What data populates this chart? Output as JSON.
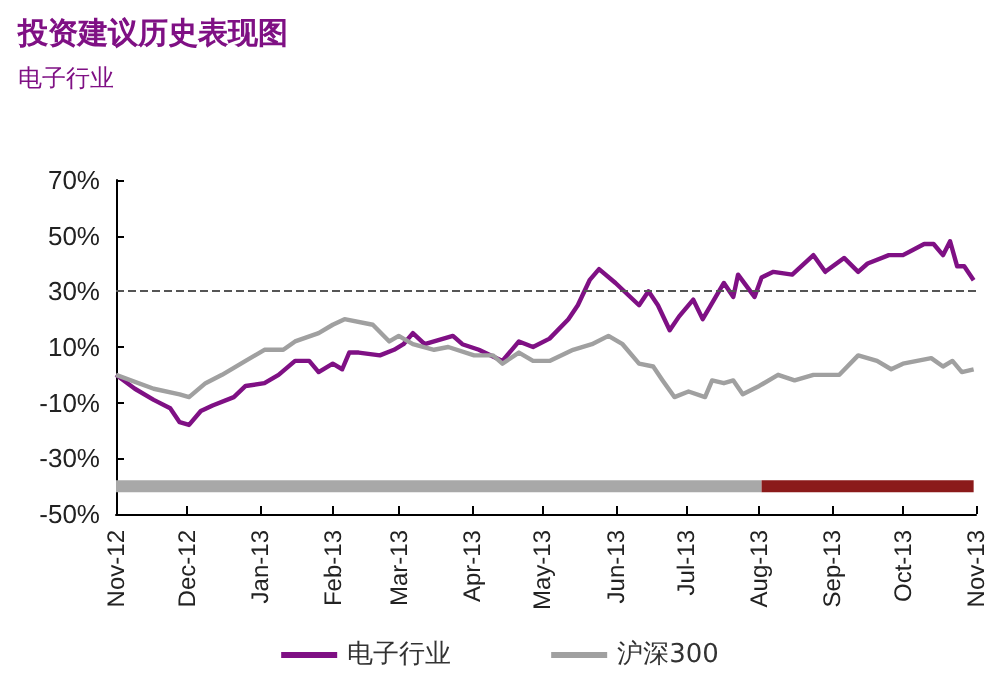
{
  "chart_data": {
    "type": "line",
    "title": "投资建议历史表现图",
    "subtitle": "电子行业",
    "xlim": [
      "2012-11-01",
      "2013-11-01"
    ],
    "xticks": [
      {
        "value": "2012-11-01",
        "label": "Nov-12"
      },
      {
        "value": "2012-12-01",
        "label": "Dec-12"
      },
      {
        "value": "2013-01-01",
        "label": "Jan-13"
      },
      {
        "value": "2013-02-01",
        "label": "Feb-13"
      },
      {
        "value": "2013-03-01",
        "label": "Mar-13"
      },
      {
        "value": "2013-04-01",
        "label": "Apr-13"
      },
      {
        "value": "2013-05-01",
        "label": "May-13"
      },
      {
        "value": "2013-06-01",
        "label": "Jun-13"
      },
      {
        "value": "2013-07-01",
        "label": "Jul-13"
      },
      {
        "value": "2013-08-01",
        "label": "Aug-13"
      },
      {
        "value": "2013-09-01",
        "label": "Sep-13"
      },
      {
        "value": "2013-10-01",
        "label": "Oct-13"
      },
      {
        "value": "2013-11-01",
        "label": "Nov-13"
      }
    ],
    "ylim": [
      -50,
      70
    ],
    "yticks": [
      {
        "value": -50,
        "label": "-50%"
      },
      {
        "value": -30,
        "label": "-30%"
      },
      {
        "value": -10,
        "label": "-10%"
      },
      {
        "value": 10,
        "label": "10%"
      },
      {
        "value": 30,
        "label": "30%"
      },
      {
        "value": 50,
        "label": "50%"
      },
      {
        "value": 70,
        "label": "70%"
      }
    ],
    "grid": false,
    "legend": "bottom",
    "marker": "none",
    "line_style": "solid",
    "ref_lines": [
      {
        "axis": "y",
        "value": 30,
        "color": "#555555",
        "line_style": "dashed"
      }
    ],
    "series": [
      {
        "name": "电子行业",
        "color": "#7f1084",
        "x": [
          "2012-11-01",
          "2012-11-09",
          "2012-11-17",
          "2012-11-24",
          "2012-11-28",
          "2012-12-02",
          "2012-12-07",
          "2012-12-12",
          "2012-12-21",
          "2012-12-26",
          "2013-01-03",
          "2013-01-09",
          "2013-01-16",
          "2013-01-22",
          "2013-01-26",
          "2013-02-01",
          "2013-02-05",
          "2013-02-08",
          "2013-02-12",
          "2013-02-21",
          "2013-02-27",
          "2013-03-03",
          "2013-03-07",
          "2013-03-12",
          "2013-03-24",
          "2013-03-28",
          "2013-04-04",
          "2013-04-14",
          "2013-04-21",
          "2013-04-27",
          "2013-05-04",
          "2013-05-12",
          "2013-05-16",
          "2013-05-21",
          "2013-05-25",
          "2013-06-01",
          "2013-06-11",
          "2013-06-15",
          "2013-06-19",
          "2013-06-24",
          "2013-06-28",
          "2013-07-04",
          "2013-07-08",
          "2013-07-17",
          "2013-07-21",
          "2013-07-23",
          "2013-07-30",
          "2013-08-02",
          "2013-08-07",
          "2013-08-15",
          "2013-08-24",
          "2013-08-29",
          "2013-09-06",
          "2013-09-12",
          "2013-09-16",
          "2013-09-25",
          "2013-10-01",
          "2013-10-10",
          "2013-10-14",
          "2013-10-18",
          "2013-10-21",
          "2013-10-24",
          "2013-10-27",
          "2013-10-31"
        ],
        "values": [
          0,
          -5,
          -9,
          -12,
          -17,
          -18,
          -13,
          -11,
          -8,
          -4,
          -3,
          0,
          5,
          5,
          1,
          4,
          2,
          8,
          8,
          7,
          9,
          11,
          15,
          11,
          14,
          11,
          9,
          5,
          12,
          10,
          13,
          20,
          25,
          34,
          38,
          33,
          25,
          30,
          25,
          16,
          21,
          27,
          20,
          33,
          28,
          36,
          28,
          35,
          37,
          36,
          43,
          37,
          42,
          37,
          40,
          43,
          43,
          47,
          47,
          43,
          48,
          39,
          39,
          34
        ]
      },
      {
        "name": "沪深300",
        "color": "#a0a0a0",
        "x": [
          "2012-11-01",
          "2012-11-17",
          "2012-11-28",
          "2012-12-02",
          "2012-12-09",
          "2012-12-16",
          "2012-12-26",
          "2013-01-03",
          "2013-01-11",
          "2013-01-16",
          "2013-01-26",
          "2013-02-01",
          "2013-02-06",
          "2013-02-18",
          "2013-02-25",
          "2013-03-01",
          "2013-03-07",
          "2013-03-16",
          "2013-03-22",
          "2013-04-02",
          "2013-04-10",
          "2013-04-14",
          "2013-04-21",
          "2013-04-27",
          "2013-05-04",
          "2013-05-14",
          "2013-05-22",
          "2013-05-29",
          "2013-06-04",
          "2013-06-11",
          "2013-06-17",
          "2013-06-21",
          "2013-06-26",
          "2013-07-02",
          "2013-07-09",
          "2013-07-12",
          "2013-07-17",
          "2013-07-21",
          "2013-07-25",
          "2013-08-01",
          "2013-08-09",
          "2013-08-16",
          "2013-08-24",
          "2013-09-04",
          "2013-09-12",
          "2013-09-20",
          "2013-09-26",
          "2013-10-01",
          "2013-10-13",
          "2013-10-18",
          "2013-10-22",
          "2013-10-26",
          "2013-10-31"
        ],
        "values": [
          0,
          -5,
          -7,
          -8,
          -3,
          0,
          5,
          9,
          9,
          12,
          15,
          18,
          20,
          18,
          12,
          14,
          11,
          9,
          10,
          7,
          7,
          4,
          8,
          5,
          5,
          9,
          11,
          14,
          11,
          4,
          3,
          -2,
          -8,
          -6,
          -8,
          -2,
          -3,
          -2,
          -7,
          -4,
          0,
          -2,
          0,
          0,
          7,
          5,
          2,
          4,
          6,
          3,
          5,
          1,
          2
        ]
      },
      {
        "color": "#a8a8a8",
        "x": [
          "2012-11-01",
          "2013-08-02"
        ],
        "values": [
          -40,
          -40
        ]
      },
      {
        "color": "#8b1a1a",
        "x": [
          "2013-08-02",
          "2013-10-31"
        ],
        "values": [
          -40,
          -40
        ]
      }
    ]
  }
}
